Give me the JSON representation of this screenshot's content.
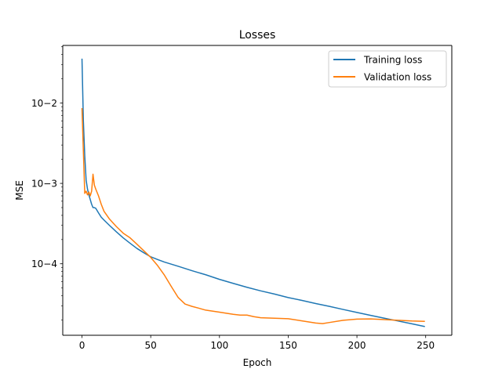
{
  "chart_data": {
    "type": "line",
    "title": "Losses",
    "xlabel": "Epoch",
    "ylabel": "MSE",
    "yscale": "log",
    "xlim": [
      -14,
      269
    ],
    "ylim": [
      1.29e-05,
      0.052
    ],
    "grid": false,
    "legend_position": "top-right",
    "x_ticks": [
      0,
      50,
      100,
      150,
      200,
      250
    ],
    "x_tick_labels": [
      "0",
      "50",
      "100",
      "150",
      "200",
      "250"
    ],
    "y_ticks": [
      0.0001,
      0.001,
      0.01
    ],
    "y_tick_labels": [
      "10−4",
      "10−3",
      "10−2"
    ],
    "series": [
      {
        "name": "Training loss",
        "color": "#1f77b4",
        "points": [
          [
            0,
            0.035
          ],
          [
            1,
            0.006
          ],
          [
            2,
            0.0022
          ],
          [
            3,
            0.0011
          ],
          [
            4,
            0.00085
          ],
          [
            5,
            0.00072
          ],
          [
            6,
            0.00063
          ],
          [
            7,
            0.00055
          ],
          [
            8,
            0.0005
          ],
          [
            9,
            0.0005
          ],
          [
            10,
            0.00049
          ],
          [
            12,
            0.00043
          ],
          [
            14,
            0.00038
          ],
          [
            16,
            0.00035
          ],
          [
            20,
            0.0003
          ],
          [
            25,
            0.00025
          ],
          [
            30,
            0.00021
          ],
          [
            35,
            0.00018
          ],
          [
            40,
            0.000155
          ],
          [
            45,
            0.000137
          ],
          [
            50,
            0.000122
          ],
          [
            55,
            0.000113
          ],
          [
            60,
            0.000105
          ],
          [
            70,
            9.3e-05
          ],
          [
            80,
            8.2e-05
          ],
          [
            90,
            7.3e-05
          ],
          [
            100,
            6.4e-05
          ],
          [
            110,
            5.7e-05
          ],
          [
            120,
            5.1e-05
          ],
          [
            130,
            4.6e-05
          ],
          [
            140,
            4.2e-05
          ],
          [
            150,
            3.8e-05
          ],
          [
            160,
            3.5e-05
          ],
          [
            170,
            3.2e-05
          ],
          [
            180,
            2.95e-05
          ],
          [
            190,
            2.7e-05
          ],
          [
            200,
            2.48e-05
          ],
          [
            210,
            2.28e-05
          ],
          [
            220,
            2.1e-05
          ],
          [
            230,
            1.94e-05
          ],
          [
            240,
            1.79e-05
          ],
          [
            249,
            1.66e-05
          ]
        ]
      },
      {
        "name": "Validation loss",
        "color": "#ff7f0e",
        "points": [
          [
            0,
            0.0085
          ],
          [
            1,
            0.0025
          ],
          [
            2,
            0.00075
          ],
          [
            3,
            0.0008
          ],
          [
            4,
            0.00072
          ],
          [
            5,
            0.00078
          ],
          [
            6,
            0.0007
          ],
          [
            7,
            0.0008
          ],
          [
            8,
            0.0013
          ],
          [
            9,
            0.00095
          ],
          [
            10,
            0.00085
          ],
          [
            12,
            0.0007
          ],
          [
            14,
            0.00055
          ],
          [
            16,
            0.00045
          ],
          [
            20,
            0.00036
          ],
          [
            25,
            0.00029
          ],
          [
            30,
            0.00024
          ],
          [
            35,
            0.00021
          ],
          [
            40,
            0.000175
          ],
          [
            45,
            0.000145
          ],
          [
            50,
            0.00012
          ],
          [
            55,
            9.5e-05
          ],
          [
            60,
            7.2e-05
          ],
          [
            65,
            5.2e-05
          ],
          [
            70,
            3.8e-05
          ],
          [
            75,
            3.15e-05
          ],
          [
            80,
            2.95e-05
          ],
          [
            85,
            2.8e-05
          ],
          [
            90,
            2.65e-05
          ],
          [
            100,
            2.5e-05
          ],
          [
            110,
            2.35e-05
          ],
          [
            115,
            2.3e-05
          ],
          [
            120,
            2.3e-05
          ],
          [
            125,
            2.2e-05
          ],
          [
            130,
            2.13e-05
          ],
          [
            140,
            2.1e-05
          ],
          [
            150,
            2.07e-05
          ],
          [
            160,
            1.95e-05
          ],
          [
            170,
            1.83e-05
          ],
          [
            175,
            1.8e-05
          ],
          [
            180,
            1.86e-05
          ],
          [
            190,
            1.98e-05
          ],
          [
            200,
            2.05e-05
          ],
          [
            210,
            2.06e-05
          ],
          [
            220,
            2.02e-05
          ],
          [
            230,
            1.98e-05
          ],
          [
            240,
            1.94e-05
          ],
          [
            249,
            1.92e-05
          ]
        ]
      }
    ]
  }
}
